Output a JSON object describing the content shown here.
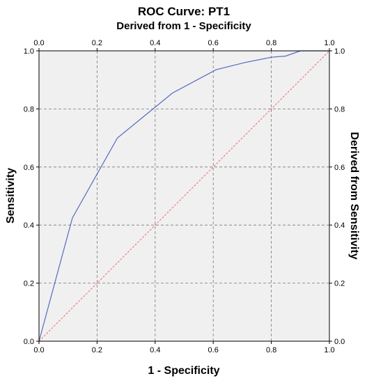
{
  "chart_data": {
    "type": "line",
    "title": "ROC Curve: PT1",
    "subtitle": "Derived from 1 - Specificity",
    "xlabel": "1 - Specificity",
    "ylabel": "Sensitivity",
    "y2label": "Derived from Sensitivity",
    "xlim": [
      0,
      1
    ],
    "ylim": [
      0,
      1
    ],
    "x_ticks": [
      "0.0",
      "0.2",
      "0.4",
      "0.6",
      "0.8",
      "1.0"
    ],
    "y_ticks": [
      "0.0",
      "0.2",
      "0.4",
      "0.6",
      "0.8",
      "1.0"
    ],
    "grid": true,
    "series": [
      {
        "x": [
          0.0,
          0.115,
          0.27,
          0.46,
          0.61,
          0.71,
          0.8,
          0.85,
          0.9,
          1.0
        ],
        "y": [
          0.0,
          0.425,
          0.7,
          0.855,
          0.935,
          0.96,
          0.978,
          0.982,
          1.0,
          1.0
        ],
        "color": "#5469c3"
      },
      {
        "x": [
          0,
          1
        ],
        "y": [
          0,
          1
        ],
        "color": "#f26b6b",
        "style": "dashed"
      }
    ]
  }
}
